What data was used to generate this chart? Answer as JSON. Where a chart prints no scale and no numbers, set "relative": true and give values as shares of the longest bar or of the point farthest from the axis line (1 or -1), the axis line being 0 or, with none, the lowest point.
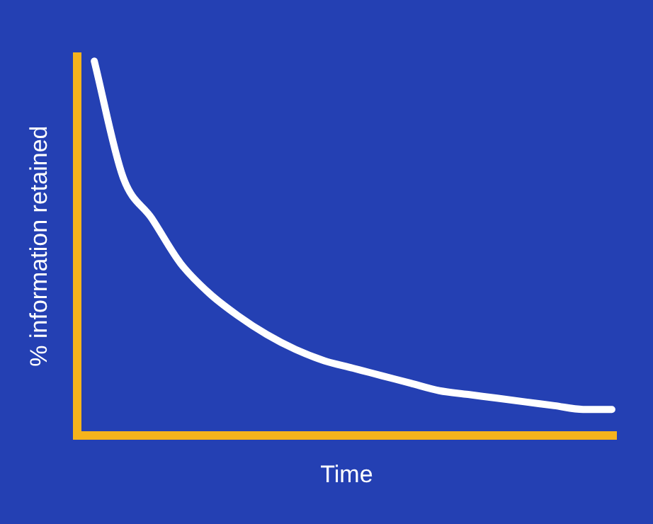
{
  "chart_data": {
    "type": "line",
    "relative": true,
    "xlabel": "Time",
    "ylabel": "% information retained",
    "categories": [
      null,
      null,
      null,
      null,
      null,
      null,
      null,
      null,
      null,
      null,
      null,
      null,
      null,
      null,
      null,
      null,
      null,
      null,
      null
    ],
    "series": [
      {
        "color": "#ffffff",
        "values": [
          1,
          0.69,
          0.58,
          0.46,
          0.38,
          0.32,
          0.27,
          0.23,
          0.2,
          0.18,
          0.16,
          0.14,
          0.12,
          0.11,
          0.1,
          0.09,
          0.08,
          0.07,
          0.07
        ]
      }
    ],
    "grid": false,
    "legend": false,
    "marker": "none",
    "line_style": "solid",
    "tick_labels": false
  }
}
